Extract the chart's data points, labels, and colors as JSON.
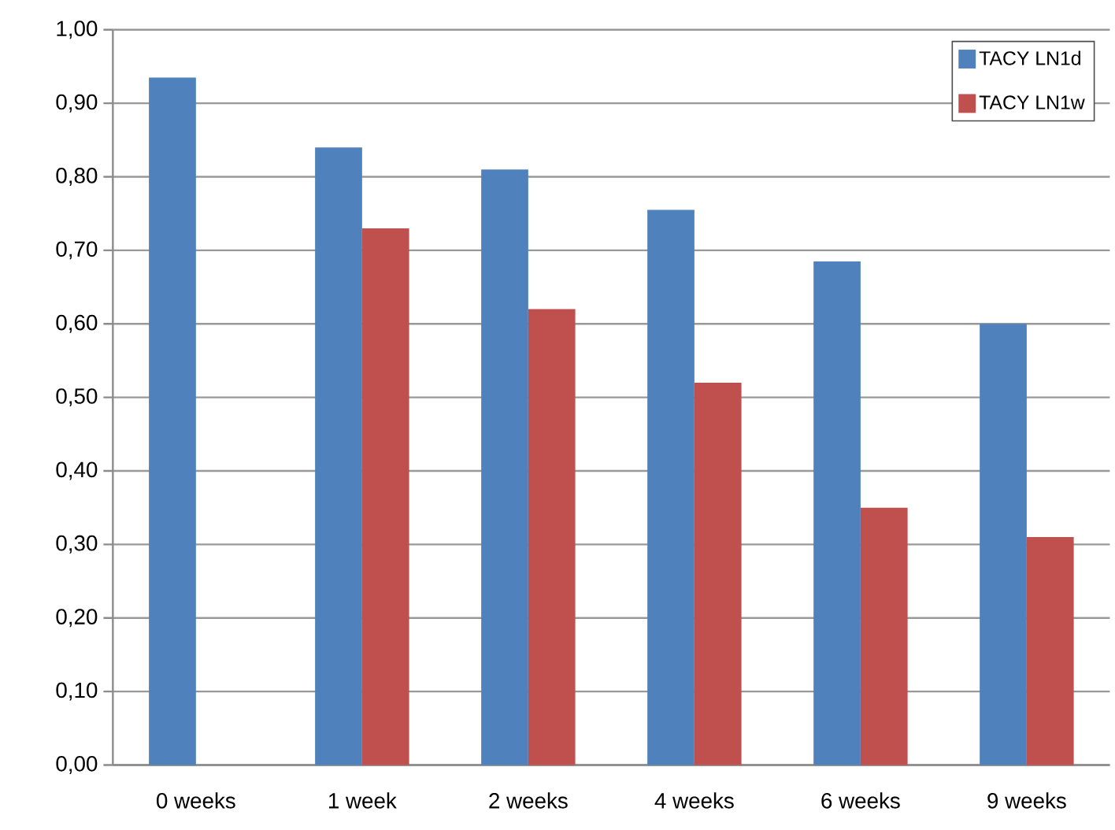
{
  "chart_data": {
    "type": "bar",
    "categories": [
      "0 weeks",
      "1 week",
      "2 weeks",
      "4 weeks",
      "6 weeks",
      "9 weeks"
    ],
    "series": [
      {
        "name": "TACY LN1d",
        "color": "#4f81bd",
        "values": [
          0.935,
          0.84,
          0.81,
          0.755,
          0.685,
          0.6
        ]
      },
      {
        "name": "TACY LN1w",
        "color": "#c0504d",
        "values": [
          null,
          0.73,
          0.62,
          0.52,
          0.35,
          0.31
        ]
      }
    ],
    "ylim": [
      0,
      1
    ],
    "yticks": [
      {
        "value": 0,
        "label": "0,00"
      },
      {
        "value": 0.1,
        "label": "0,10"
      },
      {
        "value": 0.2,
        "label": "0,20"
      },
      {
        "value": 0.3,
        "label": "0,30"
      },
      {
        "value": 0.4,
        "label": "0,40"
      },
      {
        "value": 0.5,
        "label": "0,50"
      },
      {
        "value": 0.6,
        "label": "0,60"
      },
      {
        "value": 0.7,
        "label": "0,70"
      },
      {
        "value": 0.8,
        "label": "0,80"
      },
      {
        "value": 0.9,
        "label": "0,90"
      },
      {
        "value": 1,
        "label": "1,00"
      }
    ],
    "grid": "y",
    "legend": "top right"
  }
}
